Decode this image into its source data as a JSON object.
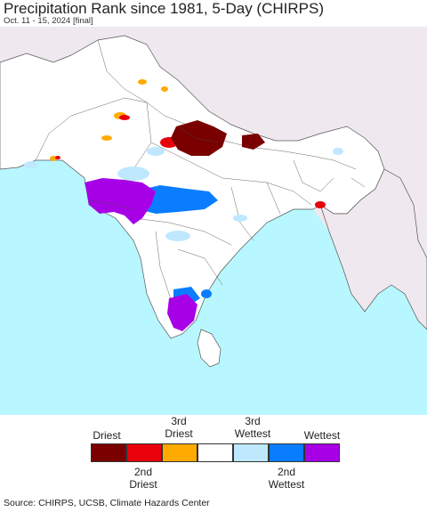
{
  "title": "Precipitation Rank since 1981, 5-Day (CHIRPS)",
  "subtitle": "Oct. 11 - 15, 2024 [final]",
  "source": "Source: CHIRPS, UCSB, Climate Hazards Center",
  "legend": {
    "top_labels": {
      "driest": "Driest",
      "third_driest_a": "3rd",
      "third_driest_b": "Driest",
      "third_wettest_a": "3rd",
      "third_wettest_b": "Wettest",
      "wettest": "Wettest"
    },
    "bottom_labels": {
      "second_driest_a": "2nd",
      "second_driest_b": "Driest",
      "second_wettest_a": "2nd",
      "second_wettest_b": "Wettest"
    },
    "colors": [
      "#7a0000",
      "#e8000b",
      "#ffaa00",
      "#ffffff",
      "#bfe8ff",
      "#0a7dff",
      "#a700e6"
    ]
  },
  "map_colors": {
    "ocean": "#b8f7ff",
    "outside_region": "#efe9ef",
    "land": "#ffffff",
    "borders": "#555555"
  }
}
